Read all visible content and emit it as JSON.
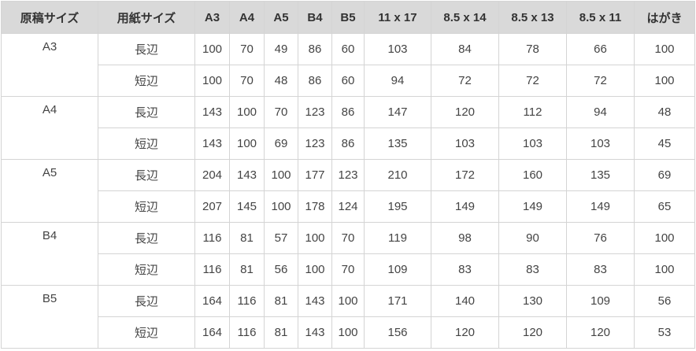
{
  "table": {
    "headers": [
      "原稿サイズ",
      "用紙サイズ",
      "A3",
      "A4",
      "A5",
      "B4",
      "B5",
      "11 x 17",
      "8.5 x 14",
      "8.5 x 13",
      "8.5 x 11",
      "はがき"
    ],
    "groups": [
      {
        "label": "A3",
        "rows": [
          {
            "side": "長辺",
            "values": [
              100,
              70,
              49,
              86,
              60,
              103,
              84,
              78,
              66,
              100
            ]
          },
          {
            "side": "短辺",
            "values": [
              100,
              70,
              48,
              86,
              60,
              94,
              72,
              72,
              72,
              100
            ]
          }
        ]
      },
      {
        "label": "A4",
        "rows": [
          {
            "side": "長辺",
            "values": [
              143,
              100,
              70,
              123,
              86,
              147,
              120,
              112,
              94,
              48
            ]
          },
          {
            "side": "短辺",
            "values": [
              143,
              100,
              69,
              123,
              86,
              135,
              103,
              103,
              103,
              45
            ]
          }
        ]
      },
      {
        "label": "A5",
        "rows": [
          {
            "side": "長辺",
            "values": [
              204,
              143,
              100,
              177,
              123,
              210,
              172,
              160,
              135,
              69
            ]
          },
          {
            "side": "短辺",
            "values": [
              207,
              145,
              100,
              178,
              124,
              195,
              149,
              149,
              149,
              65
            ]
          }
        ]
      },
      {
        "label": "B4",
        "rows": [
          {
            "side": "長辺",
            "values": [
              116,
              81,
              57,
              100,
              70,
              119,
              98,
              90,
              76,
              100
            ]
          },
          {
            "side": "短辺",
            "values": [
              116,
              81,
              56,
              100,
              70,
              109,
              83,
              83,
              83,
              100
            ]
          }
        ]
      },
      {
        "label": "B5",
        "rows": [
          {
            "side": "長辺",
            "values": [
              164,
              116,
              81,
              143,
              100,
              171,
              140,
              130,
              109,
              56
            ]
          },
          {
            "side": "短辺",
            "values": [
              164,
              116,
              81,
              143,
              100,
              156,
              120,
              120,
              120,
              53
            ]
          }
        ]
      }
    ]
  }
}
